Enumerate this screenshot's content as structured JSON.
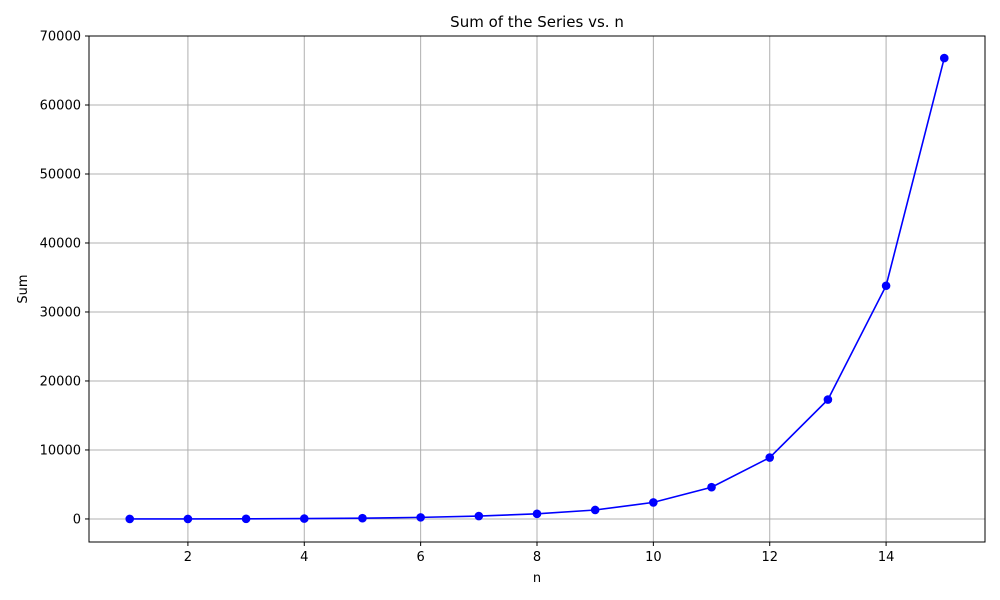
{
  "chart_data": {
    "type": "line",
    "title": "Sum of the Series vs. n",
    "xlabel": "n",
    "ylabel": "Sum",
    "x": [
      1,
      2,
      3,
      4,
      5,
      6,
      7,
      8,
      9,
      10,
      11,
      12,
      13,
      14,
      15
    ],
    "series": [
      {
        "values": [
          1,
          5,
          15,
          50,
          110,
          230,
          420,
          740,
          1300,
          2400,
          4600,
          8900,
          17300,
          33800,
          66800
        ],
        "color": "#0000ff",
        "marker": "circle"
      }
    ],
    "xlim": [
      0.3,
      15.7
    ],
    "ylim": [
      -3340,
      70000
    ],
    "xticks": [
      2,
      4,
      6,
      8,
      10,
      12,
      14
    ],
    "yticks": [
      0,
      10000,
      20000,
      30000,
      40000,
      50000,
      60000,
      70000
    ],
    "grid": true,
    "grid_color": "#b0b0b0"
  }
}
